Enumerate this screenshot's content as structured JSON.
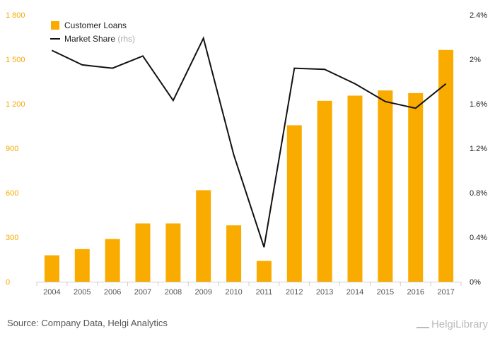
{
  "chart_data": {
    "type": "bar",
    "categories": [
      "2004",
      "2005",
      "2006",
      "2007",
      "2008",
      "2009",
      "2010",
      "2011",
      "2012",
      "2013",
      "2014",
      "2015",
      "2016",
      "2017"
    ],
    "series": [
      {
        "name": "Customer Loans",
        "type": "bar",
        "axis": "left",
        "color": "#f9ab00",
        "values": [
          178,
          220,
          288,
          393,
          393,
          617,
          380,
          140,
          1055,
          1220,
          1255,
          1290,
          1272,
          1563
        ]
      },
      {
        "name": "Market Share",
        "type": "line",
        "axis": "right",
        "color": "#111111",
        "values": [
          2.08,
          1.95,
          1.92,
          2.03,
          1.63,
          2.19,
          1.14,
          0.31,
          1.92,
          1.91,
          1.78,
          1.62,
          1.56,
          1.78
        ]
      }
    ],
    "legend": {
      "position": "top-left",
      "items": [
        {
          "label": "Customer Loans",
          "sub": ""
        },
        {
          "label": "Market Share",
          "sub": "(rhs)"
        }
      ]
    },
    "left_axis": {
      "ylim": [
        0,
        1800
      ],
      "ticks": [
        0,
        300,
        600,
        900,
        1200,
        1500,
        1800
      ],
      "tick_labels": [
        "0",
        "300",
        "600",
        "900",
        "1 200",
        "1 500",
        "1 800"
      ]
    },
    "right_axis": {
      "ylim": [
        0,
        2.4
      ],
      "ticks": [
        0,
        0.4,
        0.8,
        1.2,
        1.6,
        2.0,
        2.4
      ],
      "tick_labels": [
        "0%",
        "0.4%",
        "0.8%",
        "1.2%",
        "1.6%",
        "2%",
        "2.4%"
      ]
    },
    "grid": false
  },
  "footer": {
    "source": "Source: Company Data, Helgi Analytics",
    "brand": "HelgiLibrary"
  },
  "colors": {
    "bar": "#f9ab00",
    "line": "#111111",
    "left_ticks": "#f5a800",
    "axis": "#cccccc"
  }
}
